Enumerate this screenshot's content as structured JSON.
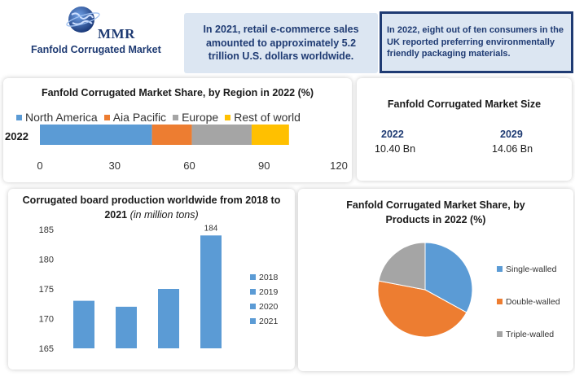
{
  "header": {
    "logo_text": "MMR",
    "report_title": "Fanfold Corrugated Market",
    "fact_1": "In 2021, retail e-commerce sales amounted to approximately 5.2 trillion U.S. dollars worldwide.",
    "fact_2": "In 2022, eight out of ten consumers in the UK reported preferring environmentally friendly packaging materials."
  },
  "market_size": {
    "title": "Fanfold Corrugated Market Size",
    "year_1": "2022",
    "value_1": "10.40 Bn",
    "year_2": "2029",
    "value_2": "14.06 Bn"
  },
  "colors": {
    "blue": "#5b9bd5",
    "orange": "#ed7d31",
    "gray": "#a5a5a5",
    "gold": "#ffc000",
    "navy": "#1f3b73"
  },
  "chart_data": [
    {
      "type": "bar",
      "orientation": "horizontal-stacked",
      "title": "Fanfold Corrugated Market Share, by Region in 2022 (%)",
      "categories": [
        "2022"
      ],
      "series": [
        {
          "name": "North America",
          "values": [
            45
          ],
          "color": "#5b9bd5"
        },
        {
          "name": "Aia Pacific",
          "values": [
            16
          ],
          "color": "#ed7d31"
        },
        {
          "name": "Europe",
          "values": [
            24
          ],
          "color": "#a5a5a5"
        },
        {
          "name": "Rest of world",
          "values": [
            15
          ],
          "color": "#ffc000"
        }
      ],
      "xlim": [
        0,
        120
      ],
      "xticks": [
        "0",
        "30",
        "60",
        "90",
        "120"
      ],
      "legend": "top",
      "grid": false
    },
    {
      "type": "bar",
      "title": "Corrugated board production worldwide from 2018 to 2021",
      "title_note": "(in million tons)",
      "categories": [
        "2018",
        "2019",
        "2020",
        "2021"
      ],
      "values": [
        173,
        172,
        175,
        184
      ],
      "data_labels": [
        "",
        "",
        "",
        "184"
      ],
      "ylim": [
        165,
        185
      ],
      "yticks": [
        "165",
        "170",
        "175",
        "180",
        "185"
      ],
      "color": "#5b9bd5",
      "legend": "right",
      "grid": false
    },
    {
      "type": "pie",
      "title": "Fanfold Corrugated Market Share, by Products in 2022 (%)",
      "labels": [
        "Single-walled",
        "Double-walled",
        "Triple-walled"
      ],
      "values": [
        33,
        45,
        22
      ],
      "colors": [
        "#5b9bd5",
        "#ed7d31",
        "#a5a5a5"
      ],
      "legend": "right"
    }
  ]
}
